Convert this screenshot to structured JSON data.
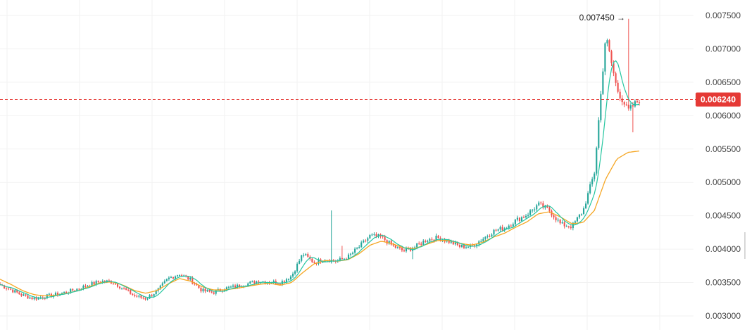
{
  "chart_data": {
    "type": "candlestick",
    "y_range": [
      0.0029,
      0.0076
    ],
    "y_ticks": [
      "0.007500",
      "0.007000",
      "0.006500",
      "0.006000",
      "0.005500",
      "0.005000",
      "0.004500",
      "0.004000",
      "0.003500",
      "0.003000"
    ],
    "current_price": "0.006240",
    "current_price_value": 0.00624,
    "high_annotation": "0.007450 →",
    "high_value": 0.00745,
    "grid": true,
    "colors": {
      "up": "#26a69a",
      "down": "#ef5350",
      "ma_fast": "#26c6a0",
      "ma_slow": "#f5a623",
      "price_line": "#e53935",
      "grid": "#f2f2f2"
    },
    "approx_close_series": [
      0.00347,
      0.00339,
      0.00331,
      0.00326,
      0.00329,
      0.00332,
      0.00336,
      0.00341,
      0.00347,
      0.00352,
      0.00351,
      0.00341,
      0.0033,
      0.00326,
      0.00337,
      0.00356,
      0.00363,
      0.00354,
      0.00338,
      0.00335,
      0.00341,
      0.00344,
      0.00348,
      0.00352,
      0.00351,
      0.0035,
      0.0036,
      0.00393,
      0.0038,
      0.00385,
      0.00382,
      0.00388,
      0.00403,
      0.0042,
      0.00418,
      0.00405,
      0.00397,
      0.00403,
      0.00414,
      0.00417,
      0.00412,
      0.00404,
      0.00404,
      0.00415,
      0.00427,
      0.00432,
      0.00443,
      0.00452,
      0.00467,
      0.00458,
      0.00437,
      0.00434,
      0.00458,
      0.00515,
      0.0072,
      0.0064,
      0.00607,
      0.00624
    ],
    "approx_ma_slow_series": [
      0.00355,
      0.00347,
      0.00338,
      0.00332,
      0.0033,
      0.00331,
      0.00334,
      0.00338,
      0.00344,
      0.0035,
      0.00351,
      0.00346,
      0.00338,
      0.00334,
      0.00338,
      0.00348,
      0.00356,
      0.00352,
      0.00344,
      0.00339,
      0.00339,
      0.00341,
      0.00344,
      0.00347,
      0.00349,
      0.00346,
      0.0035,
      0.00365,
      0.00378,
      0.00383,
      0.00382,
      0.00384,
      0.00393,
      0.00406,
      0.00412,
      0.00408,
      0.00402,
      0.00401,
      0.00407,
      0.00413,
      0.00413,
      0.00409,
      0.00406,
      0.0041,
      0.00418,
      0.00424,
      0.00433,
      0.00441,
      0.00453,
      0.00456,
      0.00448,
      0.00438,
      0.0044,
      0.00458,
      0.00505,
      0.00535,
      0.00545,
      0.00547
    ]
  }
}
